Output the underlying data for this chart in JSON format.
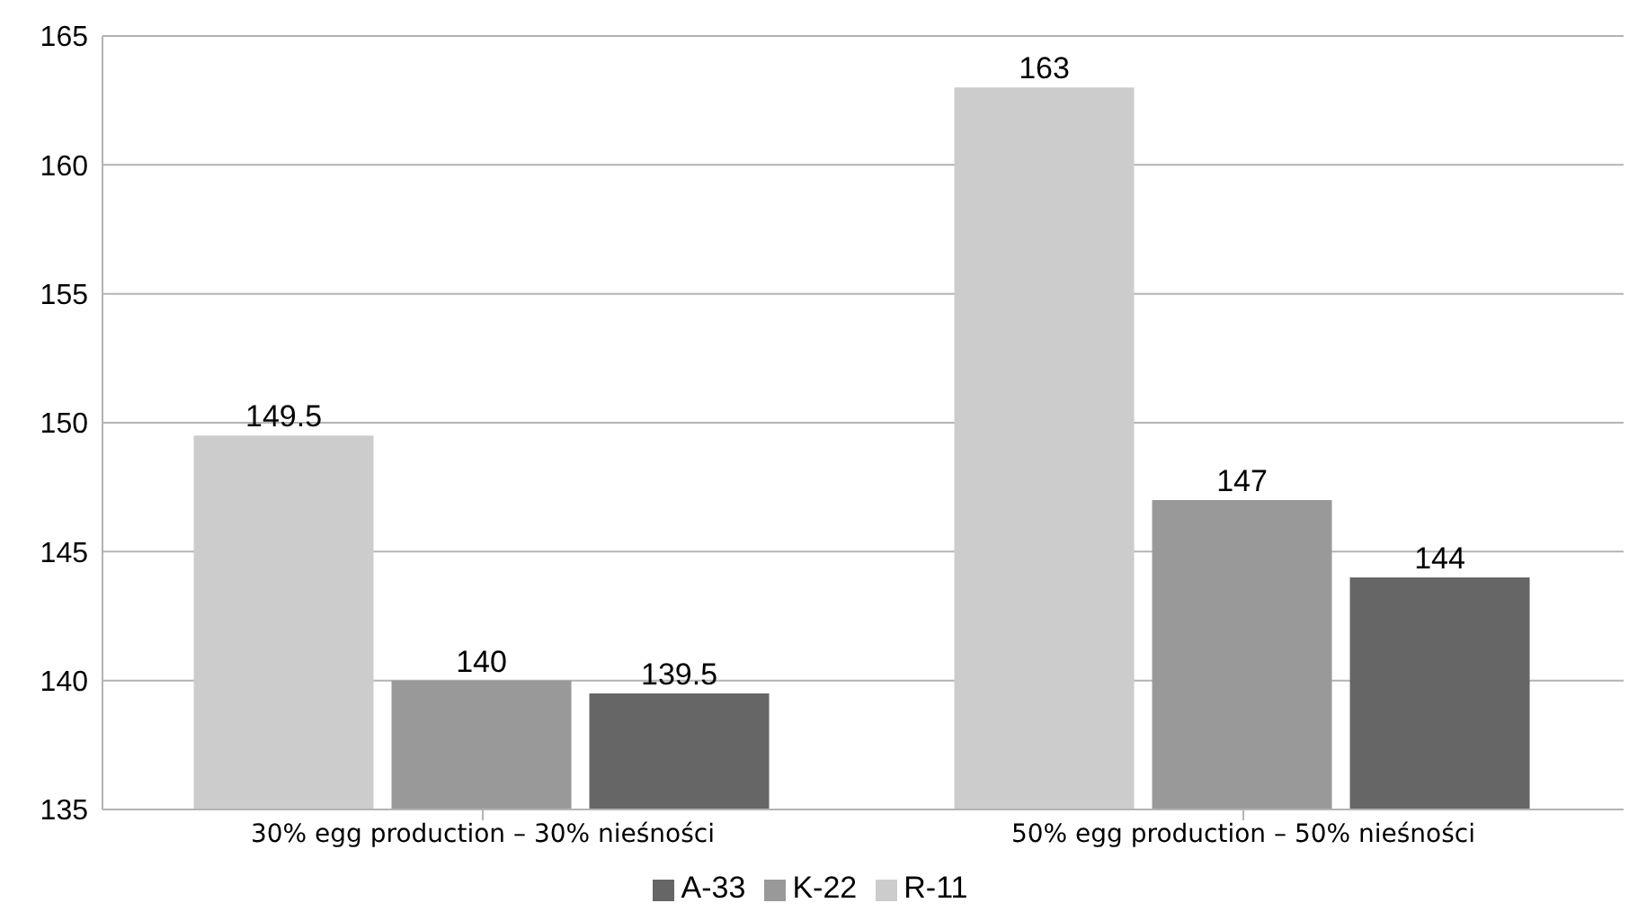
{
  "chart_data": {
    "type": "bar",
    "categories": [
      "30% egg production – 30% nieśności",
      "50% egg production – 50% nieśności"
    ],
    "series": [
      {
        "name": "R-11",
        "color": "#cccccc",
        "values": [
          149.5,
          163
        ]
      },
      {
        "name": "K-22",
        "color": "#999999",
        "values": [
          140,
          147
        ]
      },
      {
        "name": "A-33",
        "color": "#666666",
        "values": [
          139.5,
          144
        ]
      }
    ],
    "ylim": [
      135,
      165
    ],
    "yticks": [
      135,
      140,
      145,
      150,
      155,
      160,
      165
    ],
    "grid": "y",
    "legend": "bottom",
    "data_labels": true
  }
}
